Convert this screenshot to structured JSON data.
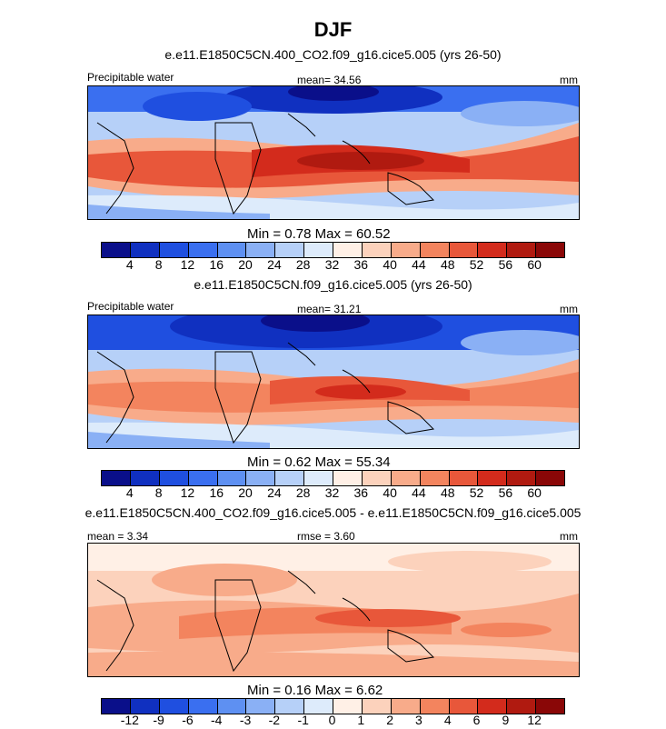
{
  "title": "DJF",
  "panels": [
    {
      "title": "e.e11.E1850C5CN.400_CO2.f09_g16.cice5.005 (yrs 26-50)",
      "left_label": "Precipitable water",
      "center_label": "mean=  34.56",
      "right_label": "mm",
      "minmax": "Min =   0.78 Max =  60.52",
      "colorbar": {
        "colors": [
          "#0a0f8a",
          "#1030c0",
          "#1f4fe0",
          "#3a6ff0",
          "#5e90f2",
          "#8ab0f5",
          "#b6d0f8",
          "#ddebfb",
          "#fff0e6",
          "#fcd2bc",
          "#f8ab8a",
          "#f3845e",
          "#e8573a",
          "#d32b1c",
          "#b01a10",
          "#8a0707"
        ],
        "labels": [
          "4",
          "8",
          "12",
          "16",
          "20",
          "24",
          "28",
          "32",
          "36",
          "40",
          "44",
          "48",
          "52",
          "56",
          "60"
        ]
      }
    },
    {
      "title": "e.e11.E1850C5CN.f09_g16.cice5.005 (yrs 26-50)",
      "left_label": "Precipitable water",
      "center_label": "mean=  31.21",
      "right_label": "mm",
      "minmax": "Min =   0.62 Max =  55.34",
      "colorbar": {
        "colors": [
          "#0a0f8a",
          "#1030c0",
          "#1f4fe0",
          "#3a6ff0",
          "#5e90f2",
          "#8ab0f5",
          "#b6d0f8",
          "#ddebfb",
          "#fff0e6",
          "#fcd2bc",
          "#f8ab8a",
          "#f3845e",
          "#e8573a",
          "#d32b1c",
          "#b01a10",
          "#8a0707"
        ],
        "labels": [
          "4",
          "8",
          "12",
          "16",
          "20",
          "24",
          "28",
          "32",
          "36",
          "40",
          "44",
          "48",
          "52",
          "56",
          "60"
        ]
      }
    },
    {
      "title": "e.e11.E1850C5CN.400_CO2.f09_g16.cice5.005 - e.e11.E1850C5CN.f09_g16.cice5.005",
      "left_label": "mean =   3.34",
      "center_label": "rmse =   3.60",
      "right_label": "mm",
      "minmax": "Min =   0.16 Max =   6.62",
      "colorbar": {
        "colors": [
          "#0a0f8a",
          "#1030c0",
          "#1f4fe0",
          "#3a6ff0",
          "#5e90f2",
          "#8ab0f5",
          "#b6d0f8",
          "#ddebfb",
          "#fff0e6",
          "#fcd2bc",
          "#f8ab8a",
          "#f3845e",
          "#e8573a",
          "#d32b1c",
          "#b01a10",
          "#8a0707"
        ],
        "labels": [
          "-12",
          "-9",
          "-6",
          "-4",
          "-3",
          "-2",
          "-1",
          "0",
          "1",
          "2",
          "3",
          "4",
          "6",
          "9",
          "12"
        ]
      }
    }
  ]
}
